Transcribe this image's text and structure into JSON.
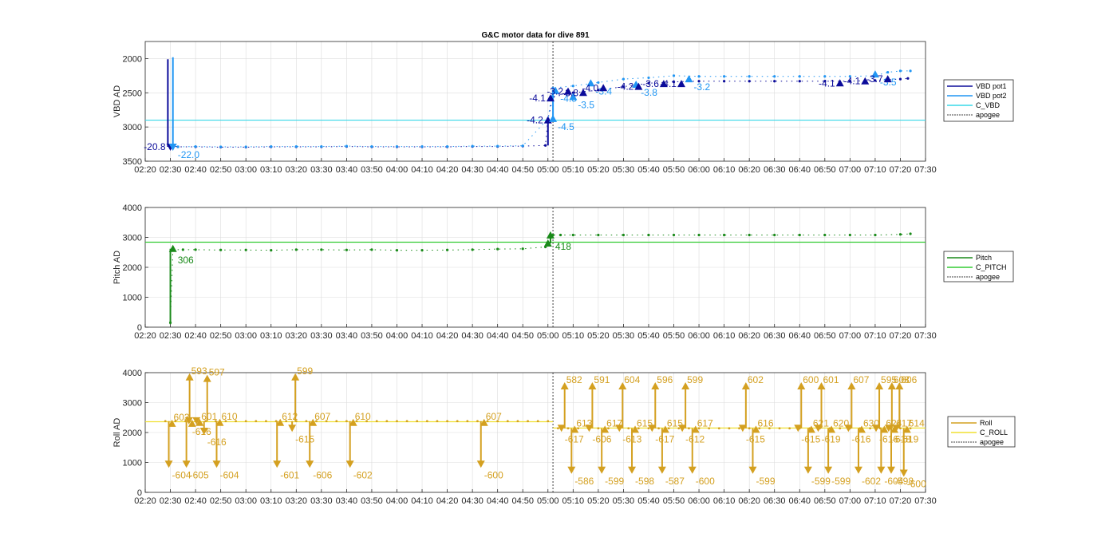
{
  "chart_data": [
    {
      "type": "line",
      "title": "G&C motor data for dive 891",
      "ylabel": "VBD AD",
      "xlim": [
        "02:20",
        "07:30"
      ],
      "ylim": [
        1750,
        3500
      ],
      "y_reversed": true,
      "yticks": [
        2000,
        2500,
        3000,
        3500
      ],
      "xticks": [
        "02:20",
        "02:30",
        "02:40",
        "02:50",
        "03:00",
        "03:10",
        "03:20",
        "03:30",
        "03:40",
        "03:50",
        "04:00",
        "04:10",
        "04:20",
        "04:30",
        "04:40",
        "04:50",
        "05:00",
        "05:10",
        "05:20",
        "05:30",
        "05:40",
        "05:50",
        "06:00",
        "06:10",
        "06:20",
        "06:30",
        "06:40",
        "06:50",
        "07:00",
        "07:10",
        "07:20",
        "07:30"
      ],
      "grid": true,
      "legend_position": "right",
      "apogee": "05:02",
      "series": [
        {
          "name": "VBD pot1",
          "color": "#0b0b9a",
          "x": [
            "02:30",
            "02:33",
            "02:40",
            "02:50",
            "03:00",
            "03:10",
            "03:20",
            "03:30",
            "03:40",
            "03:50",
            "04:00",
            "04:10",
            "04:20",
            "04:30",
            "04:40",
            "04:50",
            "04:59",
            "05:00",
            "05:02",
            "05:10",
            "05:20",
            "05:30",
            "05:40",
            "05:50",
            "06:00",
            "06:10",
            "06:20",
            "06:30",
            "06:40",
            "06:50",
            "07:00",
            "07:10",
            "07:15",
            "07:20",
            "07:23"
          ],
          "y": [
            3270,
            3290,
            3290,
            3295,
            3295,
            3290,
            3290,
            3290,
            3285,
            3290,
            3290,
            3290,
            3290,
            3285,
            3285,
            3280,
            3270,
            2880,
            2560,
            2500,
            2460,
            2410,
            2360,
            2340,
            2330,
            2330,
            2330,
            2330,
            2330,
            2330,
            2330,
            2320,
            2310,
            2300,
            2290
          ]
        },
        {
          "name": "VBD pot2",
          "color": "#2196f3",
          "x": [
            "02:31",
            "02:33",
            "02:40",
            "02:50",
            "03:00",
            "03:10",
            "03:20",
            "03:30",
            "03:40",
            "03:50",
            "04:00",
            "04:10",
            "04:20",
            "04:30",
            "04:40",
            "04:50",
            "05:00",
            "05:02",
            "05:10",
            "05:20",
            "05:30",
            "05:40",
            "05:50",
            "06:00",
            "06:10",
            "06:20",
            "06:30",
            "06:40",
            "06:50",
            "07:00",
            "07:10",
            "07:15",
            "07:20",
            "07:24"
          ],
          "y": [
            3280,
            3290,
            3285,
            3290,
            3290,
            3285,
            3285,
            3285,
            3280,
            3285,
            3285,
            3285,
            3285,
            3280,
            3280,
            3275,
            2880,
            2430,
            2400,
            2350,
            2300,
            2280,
            2250,
            2260,
            2260,
            2260,
            2260,
            2260,
            2260,
            2260,
            2250,
            2200,
            2180,
            2180
          ]
        },
        {
          "name": "C_VBD",
          "color": "#38d8e8",
          "constant": 2900
        },
        {
          "name": "apogee",
          "color": "#404040",
          "style": "dotted"
        }
      ],
      "markers": [
        {
          "x": "02:30",
          "y": 3290,
          "dir": "down",
          "series": "VBD pot1",
          "label": "-20.8"
        },
        {
          "x": "02:31",
          "y": 3290,
          "dir": "down",
          "series": "VBD pot2",
          "label": "-22.0"
        },
        {
          "x": "05:00",
          "y": 2900,
          "dir": "up",
          "series": "VBD pot1",
          "label": "-4.2"
        },
        {
          "x": "05:02",
          "y": 2880,
          "dir": "up",
          "series": "VBD pot2",
          "label": "-4.5"
        },
        {
          "x": "05:01",
          "y": 2580,
          "dir": "up",
          "series": "VBD pot1",
          "label": "-4.1"
        },
        {
          "x": "05:03",
          "y": 2470,
          "dir": "up",
          "series": "VBD pot2",
          "label": "-4.5"
        },
        {
          "x": "05:08",
          "y": 2480,
          "dir": "up",
          "series": "VBD pot1",
          "label": "-3.2"
        },
        {
          "x": "05:10",
          "y": 2560,
          "dir": "up",
          "series": "VBD pot2",
          "label": "-3.5"
        },
        {
          "x": "05:14",
          "y": 2500,
          "dir": "up",
          "series": "VBD pot1",
          "label": "-3.8"
        },
        {
          "x": "05:17",
          "y": 2360,
          "dir": "up",
          "series": "VBD pot2",
          "label": "-3.4"
        },
        {
          "x": "05:22",
          "y": 2430,
          "dir": "up",
          "series": "VBD pot1",
          "label": "-4.0"
        },
        {
          "x": "05:35",
          "y": 2380,
          "dir": "up",
          "series": "VBD pot2",
          "label": "-3.8"
        },
        {
          "x": "05:36",
          "y": 2410,
          "dir": "up",
          "series": "VBD pot1",
          "label": "-4.2"
        },
        {
          "x": "05:46",
          "y": 2370,
          "dir": "up",
          "series": "VBD pot1",
          "label": "-3.6"
        },
        {
          "x": "05:53",
          "y": 2370,
          "dir": "up",
          "series": "VBD pot1",
          "label": "-4.1"
        },
        {
          "x": "05:56",
          "y": 2300,
          "dir": "up",
          "series": "VBD pot2",
          "label": "-3.2"
        },
        {
          "x": "06:56",
          "y": 2360,
          "dir": "up",
          "series": "VBD pot1",
          "label": "-4.1"
        },
        {
          "x": "07:06",
          "y": 2330,
          "dir": "up",
          "series": "VBD pot1",
          "label": "-4.1"
        },
        {
          "x": "07:10",
          "y": 2230,
          "dir": "up",
          "series": "VBD pot2",
          "label": "-3.5"
        },
        {
          "x": "07:15",
          "y": 2300,
          "dir": "up",
          "series": "VBD pot1",
          "label": "-3.7"
        }
      ]
    },
    {
      "type": "line",
      "ylabel": "Pitch AD",
      "xlim": [
        "02:20",
        "07:30"
      ],
      "ylim": [
        0,
        4000
      ],
      "yticks": [
        0,
        1000,
        2000,
        3000,
        4000
      ],
      "grid": true,
      "legend_position": "right",
      "series": [
        {
          "name": "Pitch",
          "color": "#1a8a1a",
          "x": [
            "02:30",
            "02:31",
            "02:35",
            "02:40",
            "02:50",
            "03:00",
            "03:10",
            "03:20",
            "03:30",
            "03:40",
            "03:50",
            "04:00",
            "04:10",
            "04:20",
            "04:30",
            "04:40",
            "04:50",
            "04:59",
            "05:00",
            "05:01",
            "05:02",
            "05:05",
            "05:10",
            "05:20",
            "05:30",
            "05:40",
            "05:50",
            "06:00",
            "06:10",
            "06:20",
            "06:30",
            "06:40",
            "06:50",
            "07:00",
            "07:10",
            "07:20",
            "07:24"
          ],
          "y": [
            150,
            2590,
            2590,
            2590,
            2580,
            2580,
            2570,
            2590,
            2590,
            2580,
            2590,
            2570,
            2570,
            2580,
            2590,
            2610,
            2620,
            2680,
            2800,
            3050,
            3080,
            3080,
            3080,
            3080,
            3080,
            3080,
            3080,
            3080,
            3080,
            3080,
            3080,
            3080,
            3080,
            3080,
            3080,
            3100,
            3120
          ]
        },
        {
          "name": "C_PITCH",
          "color": "#33cc33",
          "constant": 2840
        },
        {
          "name": "apogee",
          "color": "#404040",
          "style": "dotted"
        }
      ],
      "markers": [
        {
          "x": "02:31",
          "y": 2620,
          "dir": "up",
          "label": "306"
        },
        {
          "x": "05:00",
          "y": 2800,
          "dir": "up",
          "label": ""
        },
        {
          "x": "05:01",
          "y": 3070,
          "dir": "up",
          "label": "418"
        }
      ]
    },
    {
      "type": "line",
      "ylabel": "Roll AD",
      "xlim": [
        "02:20",
        "07:30"
      ],
      "ylim": [
        0,
        4000
      ],
      "yticks": [
        0,
        1000,
        2000,
        3000,
        4000
      ],
      "grid": true,
      "legend_position": "right",
      "series": [
        {
          "name": "Roll",
          "color": "#d4a020",
          "baseline_before": 2380,
          "baseline_after": 2140
        },
        {
          "name": "C_ROLL",
          "color": "#f0e030",
          "constant_before": 2360,
          "constant_after": 2150
        },
        {
          "name": "apogee",
          "color": "#404040",
          "style": "dotted"
        }
      ],
      "spikes": [
        {
          "x": "02:30",
          "low": 900,
          "high": 2350,
          "label_low": "-604",
          "label_high": "603"
        },
        {
          "x": "02:37",
          "low": 900,
          "high": 3900,
          "label_low": "-605",
          "label_high": "593"
        },
        {
          "x": "02:38",
          "low": 2350,
          "high": 2350,
          "label_low": "-616",
          "label_high": ""
        },
        {
          "x": "02:41",
          "low": 2350,
          "high": 2380,
          "label_low": "",
          "label_high": "601"
        },
        {
          "x": "02:44",
          "low": 2000,
          "high": 3850,
          "label_low": "-616",
          "label_high": "597"
        },
        {
          "x": "02:49",
          "low": 900,
          "high": 2380,
          "label_low": "-604",
          "label_high": "610"
        },
        {
          "x": "03:13",
          "low": 900,
          "high": 2380,
          "label_low": "-601",
          "label_high": "612"
        },
        {
          "x": "03:19",
          "low": 2100,
          "high": 3900,
          "label_low": "-615",
          "label_high": "599"
        },
        {
          "x": "03:26",
          "low": 900,
          "high": 2380,
          "label_low": "-606",
          "label_high": "607"
        },
        {
          "x": "03:42",
          "low": 900,
          "high": 2380,
          "label_low": "-602",
          "label_high": "610"
        },
        {
          "x": "04:34",
          "low": 900,
          "high": 2380,
          "label_low": "-600",
          "label_high": "607"
        },
        {
          "x": "05:06",
          "low": 2100,
          "high": 3600,
          "label_low": "-617",
          "label_high": "582"
        },
        {
          "x": "05:10",
          "low": 700,
          "high": 2150,
          "label_low": "-586",
          "label_high": "613"
        },
        {
          "x": "05:17",
          "low": 2100,
          "high": 3600,
          "label_low": "-606",
          "label_high": "591"
        },
        {
          "x": "05:22",
          "low": 700,
          "high": 2150,
          "label_low": "-599",
          "label_high": "617"
        },
        {
          "x": "05:29",
          "low": 2100,
          "high": 3600,
          "label_low": "-613",
          "label_high": "604"
        },
        {
          "x": "05:34",
          "low": 700,
          "high": 2150,
          "label_low": "-598",
          "label_high": "615"
        },
        {
          "x": "05:42",
          "low": 2100,
          "high": 3600,
          "label_low": "-617",
          "label_high": "596"
        },
        {
          "x": "05:46",
          "low": 700,
          "high": 2150,
          "label_low": "-587",
          "label_high": "615"
        },
        {
          "x": "05:54",
          "low": 2100,
          "high": 3600,
          "label_low": "-612",
          "label_high": "599"
        },
        {
          "x": "05:58",
          "low": 700,
          "high": 2150,
          "label_low": "-600",
          "label_high": "617"
        },
        {
          "x": "06:18",
          "low": 2100,
          "high": 3600,
          "label_low": "-615",
          "label_high": "602"
        },
        {
          "x": "06:22",
          "low": 700,
          "high": 2150,
          "label_low": "-599",
          "label_high": "616"
        },
        {
          "x": "06:40",
          "low": 2100,
          "high": 3600,
          "label_low": "-615",
          "label_high": "600"
        },
        {
          "x": "06:44",
          "low": 700,
          "high": 2150,
          "label_low": "-599",
          "label_high": "621"
        },
        {
          "x": "06:48",
          "low": 2100,
          "high": 3600,
          "label_low": "-619",
          "label_high": "601"
        },
        {
          "x": "06:52",
          "low": 700,
          "high": 2150,
          "label_low": "-599",
          "label_high": "620"
        },
        {
          "x": "07:00",
          "low": 2100,
          "high": 3600,
          "label_low": "-616",
          "label_high": "607"
        },
        {
          "x": "07:04",
          "low": 700,
          "high": 2150,
          "label_low": "-602",
          "label_high": "630"
        },
        {
          "x": "07:11",
          "low": 2100,
          "high": 3600,
          "label_low": "-616",
          "label_high": "595"
        },
        {
          "x": "07:13",
          "low": 700,
          "high": 2150,
          "label_low": "-604",
          "label_high": "624"
        },
        {
          "x": "07:16",
          "low": 2100,
          "high": 3600,
          "label_low": "-618",
          "label_high": "608"
        },
        {
          "x": "07:17",
          "low": 700,
          "high": 2150,
          "label_low": "-598",
          "label_high": "617"
        },
        {
          "x": "07:19",
          "low": 2100,
          "high": 3600,
          "label_low": "-619",
          "label_high": "606"
        },
        {
          "x": "07:22",
          "low": 600,
          "high": 2150,
          "label_low": "-600",
          "label_high": "614"
        }
      ]
    }
  ]
}
